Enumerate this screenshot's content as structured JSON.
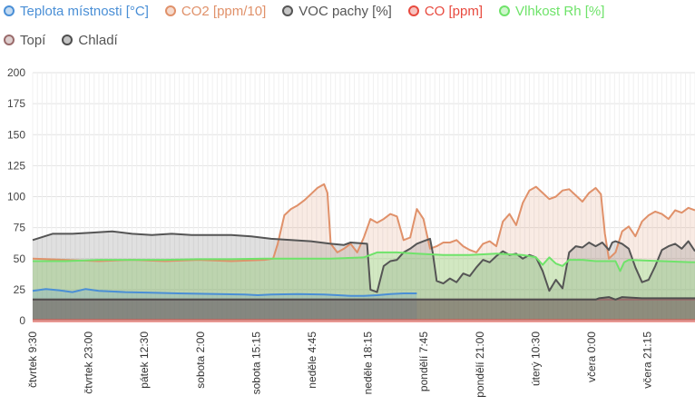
{
  "chart_data": {
    "type": "area",
    "title": "",
    "xlabel": "",
    "ylabel": "",
    "ylim": [
      0,
      200
    ],
    "yticks": [
      0,
      25,
      50,
      75,
      100,
      125,
      150,
      175,
      200
    ],
    "grid": true,
    "legend_position": "top",
    "x_tick_labels": [
      "čtvrtek 9:30",
      "čtvrtek 23:00",
      "pátek 12:30",
      "sobota 2:00",
      "sobota 15:15",
      "neděle 4:45",
      "neděle 18:15",
      "pondělí 7:45",
      "pondělí 21:00",
      "úterý 10:30",
      "včera 0:00",
      "včera 21:15"
    ],
    "series": [
      {
        "name": "Teplota místnosti [°C]",
        "color": "#4a8fd6",
        "points": [
          [
            0,
            24
          ],
          [
            2,
            25.5
          ],
          [
            4,
            24.5
          ],
          [
            6,
            23
          ],
          [
            8,
            25.5
          ],
          [
            10,
            24
          ],
          [
            14,
            23
          ],
          [
            18,
            22.5
          ],
          [
            22,
            22
          ],
          [
            28,
            21.5
          ],
          [
            32,
            21
          ],
          [
            34,
            20.5
          ],
          [
            36,
            21
          ],
          [
            40,
            21.5
          ],
          [
            44,
            21
          ],
          [
            48,
            20
          ],
          [
            50,
            20
          ],
          [
            52,
            20.5
          ],
          [
            54,
            21.5
          ],
          [
            56,
            22
          ],
          [
            58,
            22
          ]
        ]
      },
      {
        "name": "CO2 [ppm/10]",
        "color": "#e0916a",
        "points": [
          [
            0,
            50
          ],
          [
            5,
            49
          ],
          [
            10,
            48
          ],
          [
            15,
            49
          ],
          [
            20,
            48
          ],
          [
            25,
            49
          ],
          [
            30,
            48
          ],
          [
            35,
            49
          ],
          [
            36.3,
            50
          ],
          [
            37,
            62
          ],
          [
            38,
            85
          ],
          [
            39,
            90
          ],
          [
            40,
            93
          ],
          [
            41,
            97
          ],
          [
            42,
            102
          ],
          [
            43,
            107
          ],
          [
            44,
            110
          ],
          [
            44.5,
            103
          ],
          [
            45,
            62
          ],
          [
            46,
            55
          ],
          [
            47,
            58
          ],
          [
            48,
            62
          ],
          [
            49,
            55
          ],
          [
            50,
            67
          ],
          [
            51,
            82
          ],
          [
            52,
            79
          ],
          [
            53,
            82
          ],
          [
            54,
            86
          ],
          [
            55,
            84
          ],
          [
            56,
            65
          ],
          [
            57,
            67
          ],
          [
            58,
            90
          ],
          [
            59,
            82
          ],
          [
            60,
            58
          ],
          [
            61,
            60
          ],
          [
            62,
            63
          ],
          [
            63,
            63
          ],
          [
            64,
            65
          ],
          [
            65,
            60
          ],
          [
            66,
            57
          ],
          [
            67,
            55
          ],
          [
            68,
            62
          ],
          [
            69,
            64
          ],
          [
            70,
            60
          ],
          [
            71,
            80
          ],
          [
            72,
            86
          ],
          [
            73,
            77
          ],
          [
            74,
            95
          ],
          [
            75,
            105
          ],
          [
            76,
            108
          ],
          [
            77,
            103
          ],
          [
            78,
            98
          ],
          [
            79,
            100
          ],
          [
            80,
            105
          ],
          [
            81,
            106
          ],
          [
            82,
            101
          ],
          [
            83,
            96
          ],
          [
            84,
            103
          ],
          [
            85,
            107
          ],
          [
            85.8,
            102
          ],
          [
            86.4,
            70
          ],
          [
            87,
            50
          ],
          [
            88,
            55
          ],
          [
            89,
            72
          ],
          [
            90,
            76
          ],
          [
            91,
            68
          ],
          [
            92,
            80
          ],
          [
            93,
            85
          ],
          [
            94,
            88
          ],
          [
            95,
            86
          ],
          [
            96,
            82
          ],
          [
            97,
            89
          ],
          [
            98,
            87
          ],
          [
            99,
            91
          ],
          [
            100,
            89
          ]
        ]
      },
      {
        "name": "VOC pachy [%]",
        "color": "#555555",
        "points": [
          [
            0,
            65
          ],
          [
            3,
            70
          ],
          [
            6,
            70
          ],
          [
            9,
            71
          ],
          [
            12,
            72
          ],
          [
            15,
            70
          ],
          [
            18,
            69
          ],
          [
            21,
            70
          ],
          [
            24,
            69
          ],
          [
            27,
            69
          ],
          [
            30,
            69
          ],
          [
            33,
            68
          ],
          [
            36,
            66
          ],
          [
            39,
            65
          ],
          [
            42,
            64
          ],
          [
            45,
            62
          ],
          [
            47,
            61
          ],
          [
            48,
            63
          ],
          [
            50.5,
            62
          ],
          [
            51,
            25
          ],
          [
            52,
            23
          ],
          [
            53,
            44
          ],
          [
            54,
            48
          ],
          [
            55,
            49
          ],
          [
            56,
            55
          ],
          [
            57,
            58
          ],
          [
            58,
            62
          ],
          [
            59,
            64
          ],
          [
            60,
            66
          ],
          [
            60.4,
            55
          ],
          [
            61,
            32
          ],
          [
            62,
            30
          ],
          [
            63,
            34
          ],
          [
            64,
            31
          ],
          [
            65,
            38
          ],
          [
            66,
            36
          ],
          [
            67,
            43
          ],
          [
            68,
            49
          ],
          [
            69,
            47
          ],
          [
            70,
            52
          ],
          [
            71,
            56
          ],
          [
            72,
            53
          ],
          [
            73,
            54
          ],
          [
            74,
            50
          ],
          [
            75,
            53
          ],
          [
            76,
            51
          ],
          [
            77,
            40
          ],
          [
            78,
            24
          ],
          [
            79,
            33
          ],
          [
            80,
            26
          ],
          [
            81,
            55
          ],
          [
            82,
            60
          ],
          [
            83,
            59
          ],
          [
            84,
            63
          ],
          [
            85,
            60
          ],
          [
            86,
            63
          ],
          [
            87,
            57
          ],
          [
            87.5,
            63
          ],
          [
            88,
            64
          ],
          [
            89,
            62
          ],
          [
            90,
            58
          ],
          [
            91,
            43
          ],
          [
            92,
            31
          ],
          [
            93,
            33
          ],
          [
            94,
            44
          ],
          [
            95,
            57
          ],
          [
            96,
            60
          ],
          [
            97,
            62
          ],
          [
            98,
            58
          ],
          [
            99,
            64
          ],
          [
            100,
            56
          ]
        ]
      },
      {
        "name": "CO [ppm]",
        "color": "#e84a3f",
        "points": [
          [
            0,
            0
          ],
          [
            100,
            0
          ]
        ]
      },
      {
        "name": "Vlhkost Rh [%]",
        "color": "#6fe36a",
        "points": [
          [
            0,
            48
          ],
          [
            5,
            48
          ],
          [
            10,
            49
          ],
          [
            15,
            49
          ],
          [
            20,
            49
          ],
          [
            25,
            49.5
          ],
          [
            30,
            49.5
          ],
          [
            35,
            50
          ],
          [
            40,
            50
          ],
          [
            45,
            50
          ],
          [
            50,
            51
          ],
          [
            52,
            55
          ],
          [
            55,
            55
          ],
          [
            58,
            54
          ],
          [
            62,
            53
          ],
          [
            66,
            53
          ],
          [
            70,
            54
          ],
          [
            74,
            53
          ],
          [
            76,
            51
          ],
          [
            77,
            45
          ],
          [
            78,
            51
          ],
          [
            79,
            46
          ],
          [
            80,
            44
          ],
          [
            81,
            49
          ],
          [
            83,
            49
          ],
          [
            85,
            48
          ],
          [
            88,
            48
          ],
          [
            88.7,
            40
          ],
          [
            89.3,
            47
          ],
          [
            90,
            49
          ],
          [
            95,
            48
          ],
          [
            100,
            47
          ]
        ]
      },
      {
        "name": "Topí",
        "color": "#9a6b6b",
        "points": [
          [
            0,
            17
          ],
          [
            100,
            17
          ]
        ]
      },
      {
        "name": "Chladí",
        "color": "#4e4e4e",
        "points": [
          [
            0,
            17
          ],
          [
            85,
            17
          ],
          [
            85.5,
            18
          ],
          [
            87,
            19
          ],
          [
            88,
            17
          ],
          [
            89,
            19
          ],
          [
            92,
            18
          ],
          [
            100,
            18
          ]
        ]
      }
    ]
  }
}
